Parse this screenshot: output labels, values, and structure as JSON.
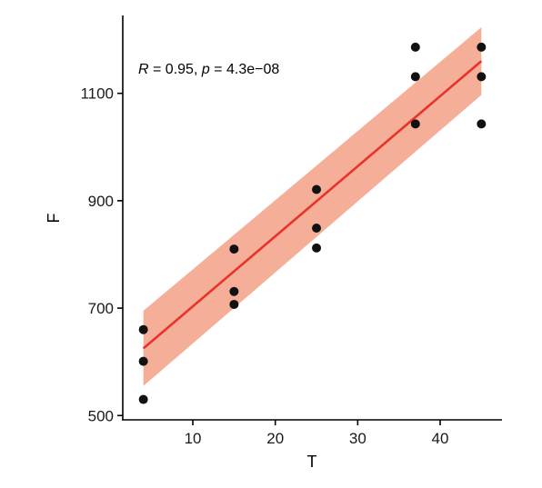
{
  "chart_data": {
    "type": "scatter",
    "xlabel": "T",
    "ylabel": "F",
    "xlim": [
      1.5,
      47.5
    ],
    "ylim": [
      492,
      1245
    ],
    "x_ticks": [
      10,
      20,
      30,
      40
    ],
    "y_ticks": [
      500,
      700,
      900,
      1100
    ],
    "grid": false,
    "annotation": {
      "r_symbol": "R",
      "r_value": " = 0.95, ",
      "p_symbol": "p",
      "p_value": " = 4.3e−08"
    },
    "points": [
      {
        "x": 4,
        "y": 530
      },
      {
        "x": 4,
        "y": 601
      },
      {
        "x": 4,
        "y": 660
      },
      {
        "x": 15,
        "y": 707
      },
      {
        "x": 15,
        "y": 731
      },
      {
        "x": 15,
        "y": 810
      },
      {
        "x": 25,
        "y": 812
      },
      {
        "x": 25,
        "y": 849
      },
      {
        "x": 25,
        "y": 921
      },
      {
        "x": 37,
        "y": 1043
      },
      {
        "x": 37,
        "y": 1131
      },
      {
        "x": 37,
        "y": 1186
      },
      {
        "x": 45,
        "y": 1043
      },
      {
        "x": 45,
        "y": 1131
      },
      {
        "x": 45,
        "y": 1186
      }
    ],
    "regression": {
      "x_start": 4,
      "x_end": 45,
      "y_start": 625,
      "y_end": 1160,
      "band_lower_start": 555,
      "band_upper_start": 695,
      "band_lower_end": 1097,
      "band_upper_end": 1223
    },
    "colors": {
      "line": "#e8322a",
      "band": "#f4a58d",
      "points": "#111111"
    }
  }
}
